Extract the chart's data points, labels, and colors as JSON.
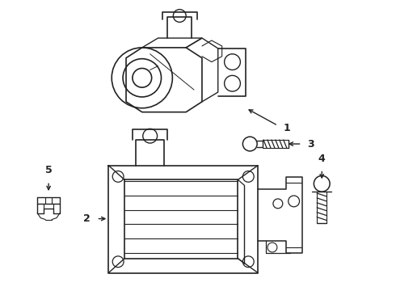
{
  "background_color": "#ffffff",
  "line_color": "#222222",
  "line_width": 1.0,
  "fig_width": 4.9,
  "fig_height": 3.6,
  "dpi": 100
}
